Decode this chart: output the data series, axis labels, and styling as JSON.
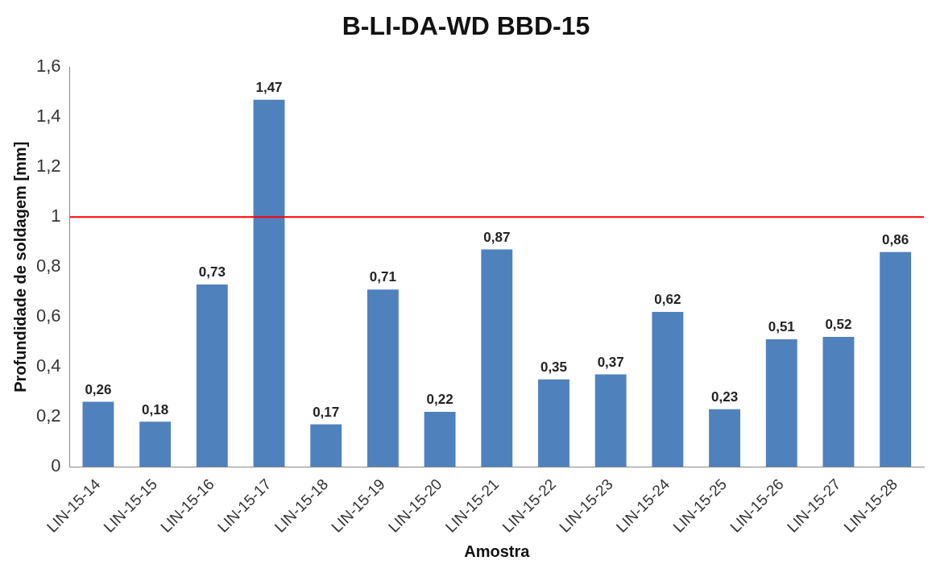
{
  "chart_data": {
    "type": "bar",
    "title": "B-LI-DA-WD BBD-15",
    "xlabel": "Amostra",
    "ylabel": "Profundidade de soldagem [mm]",
    "categories": [
      "LIN-15-14",
      "LIN-15-15",
      "LIN-15-16",
      "LIN-15-17",
      "LIN-15-18",
      "LIN-15-19",
      "LIN-15-20",
      "LIN-15-21",
      "LIN-15-22",
      "LIN-15-23",
      "LIN-15-24",
      "LIN-15-25",
      "LIN-15-26",
      "LIN-15-27",
      "LIN-15-28"
    ],
    "values": [
      0.26,
      0.18,
      0.73,
      1.47,
      0.17,
      0.71,
      0.22,
      0.87,
      0.35,
      0.37,
      0.62,
      0.23,
      0.51,
      0.52,
      0.86
    ],
    "color": "#4f81bd",
    "value_labels": [
      "0,26",
      "0,18",
      "0,73",
      "1,47",
      "0,17",
      "0,71",
      "0,22",
      "0,87",
      "0,35",
      "0,37",
      "0,62",
      "0,23",
      "0,51",
      "0,52",
      "0,86"
    ],
    "ylim": [
      0,
      1.6
    ],
    "yticks": [
      {
        "value": 0,
        "label": "0"
      },
      {
        "value": 0.2,
        "label": "0,2"
      },
      {
        "value": 0.4,
        "label": "0,4"
      },
      {
        "value": 0.6,
        "label": "0,6"
      },
      {
        "value": 0.8,
        "label": "0,8"
      },
      {
        "value": 1,
        "label": "1"
      },
      {
        "value": 1.2,
        "label": "1,2"
      },
      {
        "value": 1.4,
        "label": "1,4"
      },
      {
        "value": 1.6,
        "label": "1,6"
      }
    ],
    "grid": false,
    "legend": false,
    "ref_lines": [
      {
        "axis": "y",
        "value": 1,
        "color": "#ff0000"
      }
    ]
  }
}
